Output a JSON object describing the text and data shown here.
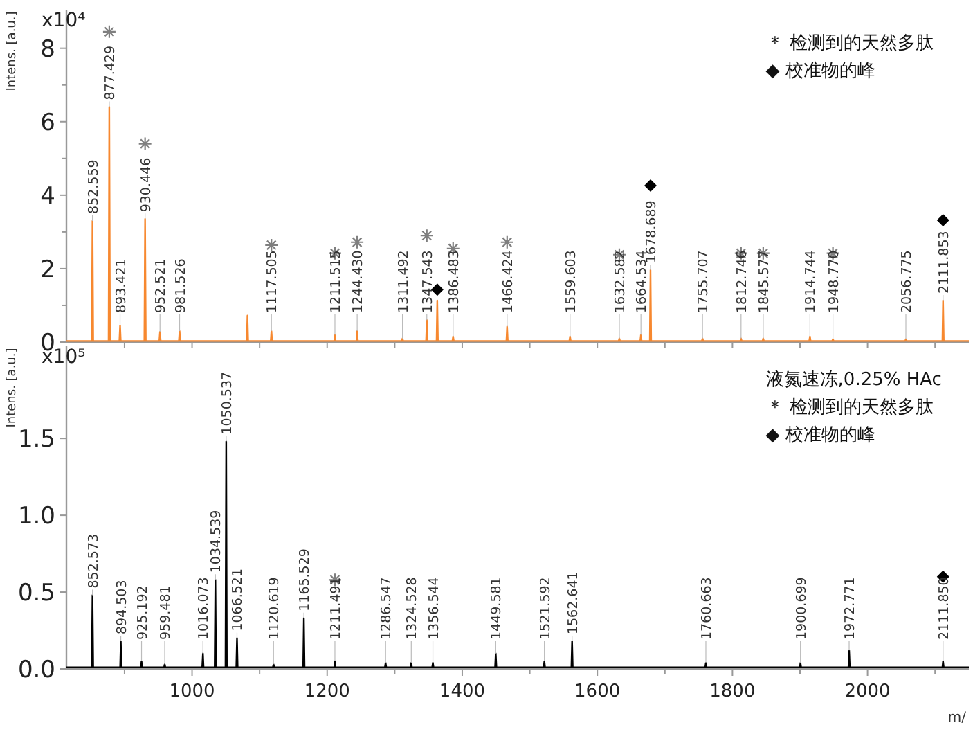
{
  "chart_data": [
    {
      "type": "line",
      "ylabel": "Intens. [a.u.]",
      "xlim": [
        814,
        2150
      ],
      "xticks": [
        {
          "value": 900,
          "label": null
        },
        {
          "value": 1000,
          "label": null
        },
        {
          "value": 1100,
          "label": null
        },
        {
          "value": 1200,
          "label": null
        },
        {
          "value": 1300,
          "label": null
        },
        {
          "value": 1400,
          "label": null
        },
        {
          "value": 1500,
          "label": null
        },
        {
          "value": 1600,
          "label": null
        },
        {
          "value": 1700,
          "label": null
        },
        {
          "value": 1800,
          "label": null
        },
        {
          "value": 1900,
          "label": null
        },
        {
          "value": 2000,
          "label": null
        },
        {
          "value": 2100,
          "label": null
        }
      ],
      "ylim": [
        0,
        9.05
      ],
      "yticks": [
        0,
        {
          "value": 1,
          "label": null
        },
        2,
        {
          "value": 3,
          "label": null
        },
        4,
        {
          "value": 5,
          "label": null
        },
        6,
        {
          "value": 7,
          "label": null
        },
        8
      ],
      "tick_labels": "y",
      "series": [
        {
          "type": "line",
          "color": "#f7882f",
          "x": [
            814,
            851.5,
            852.559,
            853.6,
            876.4,
            877.429,
            878.5,
            892.4,
            893.421,
            894.4,
            929.4,
            930.446,
            931.5,
            951.5,
            952.521,
            953.5,
            980.5,
            981.526,
            982.5,
            1081,
            1082,
            1083,
            1116.5,
            1117.505,
            1118.5,
            1210.5,
            1211.515,
            1212.5,
            1243.4,
            1244.43,
            1245.4,
            1310.5,
            1311.492,
            1312.5,
            1346.5,
            1347.543,
            1348.5,
            1362,
            1363,
            1364,
            1385.5,
            1386.483,
            1387.5,
            1465.4,
            1466.424,
            1467.4,
            1558.6,
            1559.603,
            1560.6,
            1631.6,
            1632.582,
            1633.6,
            1663.5,
            1664.534,
            1665.5,
            1677.7,
            1678.689,
            1679.7,
            1754.7,
            1755.707,
            1756.7,
            1811.7,
            1812.746,
            1813.7,
            1844.6,
            1845.577,
            1846.6,
            1913.7,
            1914.744,
            1915.7,
            1947.8,
            1948.77,
            1949.8,
            2055.8,
            2056.775,
            2057.8,
            2110.9,
            2111.853,
            2112.9,
            2150
          ],
          "values": [
            0.03,
            0.03,
            3.3,
            0.03,
            0.03,
            6.4,
            0.03,
            0.03,
            0.45,
            0.03,
            0.03,
            3.35,
            0.03,
            0.03,
            0.28,
            0.03,
            0.03,
            0.3,
            0.03,
            0.03,
            0.72,
            0.03,
            0.03,
            0.3,
            0.03,
            0.03,
            0.2,
            0.03,
            0.03,
            0.3,
            0.03,
            0.03,
            0.1,
            0.03,
            0.03,
            0.6,
            0.03,
            0.03,
            1.13,
            0.03,
            0.03,
            0.15,
            0.03,
            0.03,
            0.42,
            0.03,
            0.03,
            0.15,
            0.03,
            0.03,
            0.1,
            0.03,
            0.03,
            0.2,
            0.03,
            0.03,
            1.96,
            0.03,
            0.03,
            0.1,
            0.03,
            0.03,
            0.1,
            0.03,
            0.03,
            0.1,
            0.03,
            0.03,
            0.15,
            0.03,
            0.03,
            0.08,
            0.03,
            0.03,
            0.08,
            0.03,
            0.03,
            1.13,
            0.03,
            0.03
          ]
        },
        {
          "type": "scatter",
          "marker": "cross",
          "color": "#7f7f7f",
          "x": [
            877.429,
            930.446,
            1117.505,
            1211.515,
            1244.43,
            1347.543,
            1386.483,
            1466.424,
            1632.582,
            1812.746,
            1845.577,
            1948.77
          ],
          "values": [
            8.45,
            5.4,
            2.64,
            2.42,
            2.72,
            2.9,
            2.55,
            2.72,
            2.38,
            2.42,
            2.42,
            2.42
          ]
        },
        {
          "type": "scatter",
          "marker": "diamond",
          "color": "#000000",
          "x": [
            1363,
            1678.689,
            2111.853
          ],
          "values": [
            1.43,
            4.26,
            3.32
          ]
        }
      ],
      "annotations": [
        "x10⁴",
        "＊ 检测到的天然多肽",
        "◆ 校准物的峰",
        {
          "text": "852.559",
          "x": 852.559,
          "y": 3.3
        },
        {
          "text": "877.429",
          "x": 877.429,
          "y": 6.4
        },
        {
          "text": "893.421",
          "x": 893.421,
          "y": 0.45
        },
        {
          "text": "930.446",
          "x": 930.446,
          "y": 3.35
        },
        {
          "text": "952.521",
          "x": 952.521,
          "y": 0.28
        },
        {
          "text": "981.526",
          "x": 981.526,
          "y": 0.3
        },
        {
          "text": "1117.505",
          "x": 1117.505,
          "y": 0.3
        },
        {
          "text": "1211.515",
          "x": 1211.515,
          "y": 0.2
        },
        {
          "text": "1244.430",
          "x": 1244.43,
          "y": 0.3
        },
        {
          "text": "1311.492",
          "x": 1311.492,
          "y": 0.1
        },
        {
          "text": "1347.543",
          "x": 1347.543,
          "y": 0.6
        },
        {
          "text": "1386.483",
          "x": 1386.483,
          "y": 0.15
        },
        {
          "text": "1466.424",
          "x": 1466.424,
          "y": 0.42
        },
        {
          "text": "1559.603",
          "x": 1559.603,
          "y": 0.15
        },
        {
          "text": "1632.582",
          "x": 1632.582,
          "y": 0.1
        },
        {
          "text": "1664.534",
          "x": 1664.534,
          "y": 0.2
        },
        {
          "text": "1678.689",
          "x": 1678.689,
          "y": 1.96
        },
        {
          "text": "1755.707",
          "x": 1755.707,
          "y": 0.1
        },
        {
          "text": "1812.746",
          "x": 1812.746,
          "y": 0.1
        },
        {
          "text": "1845.577",
          "x": 1845.577,
          "y": 0.1
        },
        {
          "text": "1914.744",
          "x": 1914.744,
          "y": 0.15
        },
        {
          "text": "1948.770",
          "x": 1948.77,
          "y": 0.08
        },
        {
          "text": "2056.775",
          "x": 2056.775,
          "y": 0.08
        },
        {
          "text": "2111.853",
          "x": 2111.853,
          "y": 1.13
        }
      ]
    },
    {
      "type": "line",
      "ylabel": "Intens. [a.u.]",
      "xlabel": "m/",
      "xlim": [
        814,
        2150
      ],
      "xticks": [
        {
          "value": 900,
          "label": null
        },
        1000,
        {
          "value": 1100,
          "label": null
        },
        1200,
        {
          "value": 1300,
          "label": null
        },
        1400,
        {
          "value": 1500,
          "label": null
        },
        1600,
        {
          "value": 1700,
          "label": null
        },
        1800,
        {
          "value": 1900,
          "label": null
        },
        2000,
        {
          "value": 2100,
          "label": null
        }
      ],
      "ylim": [
        0,
        2.1
      ],
      "yticks": [
        "0.0",
        {
          "value": 0.5,
          "label": "0.5"
        },
        {
          "value": 1,
          "label": "1.0"
        },
        {
          "value": 1.5,
          "label": "1.5"
        }
      ],
      "series": [
        {
          "type": "line",
          "color": "#000000",
          "x": [
            814,
            851.5,
            852.573,
            853.6,
            893.5,
            894.503,
            895.5,
            924.2,
            925.192,
            926.2,
            958.5,
            959.481,
            960.5,
            1015,
            1016.073,
            1017,
            1033.5,
            1034.539,
            1035.5,
            1049.5,
            1050.537,
            1051.5,
            1065.5,
            1066.521,
            1067.5,
            1119.6,
            1120.619,
            1121.6,
            1164.5,
            1165.529,
            1166.5,
            1210.5,
            1211.491,
            1212.5,
            1285.5,
            1286.547,
            1287.5,
            1323.5,
            1324.528,
            1325.5,
            1355.5,
            1356.544,
            1357.5,
            1448.6,
            1449.581,
            1450.6,
            1520.6,
            1521.592,
            1522.6,
            1561.6,
            1562.641,
            1563.6,
            1759.7,
            1760.663,
            1761.7,
            1899.7,
            1900.699,
            1901.7,
            1971.8,
            1972.771,
            1973.8,
            2110.9,
            2111.85,
            2112.9,
            2150
          ],
          "values": [
            0.01,
            0.01,
            0.48,
            0.01,
            0.01,
            0.18,
            0.01,
            0.01,
            0.05,
            0.01,
            0.01,
            0.03,
            0.01,
            0.01,
            0.1,
            0.01,
            0.01,
            0.58,
            0.01,
            0.01,
            1.48,
            0.01,
            0.01,
            0.2,
            0.01,
            0.01,
            0.03,
            0.01,
            0.01,
            0.33,
            0.01,
            0.01,
            0.05,
            0.01,
            0.01,
            0.04,
            0.01,
            0.01,
            0.04,
            0.01,
            0.01,
            0.04,
            0.01,
            0.01,
            0.1,
            0.01,
            0.01,
            0.05,
            0.01,
            0.01,
            0.18,
            0.01,
            0.01,
            0.04,
            0.01,
            0.01,
            0.04,
            0.01,
            0.01,
            0.12,
            0.01,
            0.01,
            0.05,
            0.01,
            0.01
          ]
        },
        {
          "type": "scatter",
          "marker": "cross",
          "color": "#7f7f7f",
          "x": [
            1211.491
          ],
          "values": [
            0.58
          ]
        },
        {
          "type": "scatter",
          "marker": "diamond",
          "color": "#000000",
          "x": [
            2111.85
          ],
          "values": [
            0.6
          ]
        }
      ],
      "annotations": [
        "x10⁵",
        "液氮速冻,0.25% HAc",
        "＊ 检测到的天然多肽",
        "◆ 校准物的峰",
        {
          "text": "852.573",
          "x": 852.573,
          "y": 0.48
        },
        {
          "text": "894.503",
          "x": 894.503,
          "y": 0.18
        },
        {
          "text": "925.192",
          "x": 925.192,
          "y": 0.05
        },
        {
          "text": "959.481",
          "x": 959.481,
          "y": 0.03
        },
        {
          "text": "1016.073",
          "x": 1016.073,
          "y": 0.1
        },
        {
          "text": "1034.539",
          "x": 1034.539,
          "y": 0.58
        },
        {
          "text": "1050.537",
          "x": 1050.537,
          "y": 1.48
        },
        {
          "text": "1066.521",
          "x": 1066.521,
          "y": 0.2
        },
        {
          "text": "1120.619",
          "x": 1120.619,
          "y": 0.03
        },
        {
          "text": "1165.529",
          "x": 1165.529,
          "y": 0.33
        },
        {
          "text": "1211.491",
          "x": 1211.491,
          "y": 0.05
        },
        {
          "text": "1286.547",
          "x": 1286.547,
          "y": 0.04
        },
        {
          "text": "1324.528",
          "x": 1324.528,
          "y": 0.04
        },
        {
          "text": "1356.544",
          "x": 1356.544,
          "y": 0.04
        },
        {
          "text": "1449.581",
          "x": 1449.581,
          "y": 0.1
        },
        {
          "text": "1521.592",
          "x": 1521.592,
          "y": 0.05
        },
        {
          "text": "1562.641",
          "x": 1562.641,
          "y": 0.18
        },
        {
          "text": "1760.663",
          "x": 1760.663,
          "y": 0.04
        },
        {
          "text": "1900.699",
          "x": 1900.699,
          "y": 0.04
        },
        {
          "text": "1972.771",
          "x": 1972.771,
          "y": 0.12
        },
        {
          "text": "2111.850",
          "x": 2111.85,
          "y": 0.05
        }
      ]
    }
  ]
}
